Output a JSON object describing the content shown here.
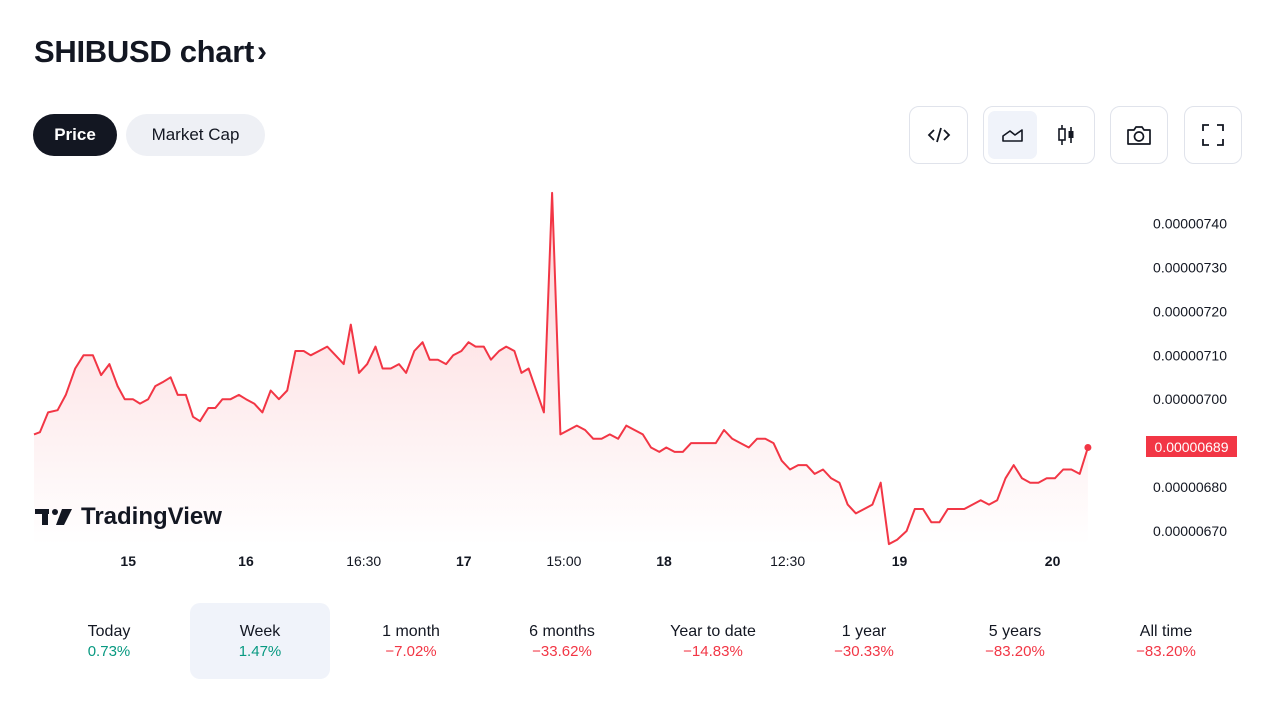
{
  "header": {
    "title": "SHIBUSD chart",
    "chevron": "›"
  },
  "tabs": [
    {
      "label": "Price",
      "active": true
    },
    {
      "label": "Market Cap",
      "active": false
    }
  ],
  "toolbar": {
    "embed_icon": "embed-code-icon",
    "area_icon": "area-chart-icon",
    "candle_icon": "candlestick-icon",
    "camera_icon": "camera-icon",
    "fullscreen_icon": "fullscreen-icon"
  },
  "colors": {
    "line": "#f23645",
    "positive": "#089981",
    "negative": "#f23645",
    "dark": "#131722"
  },
  "logo": {
    "text": "TradingView"
  },
  "chart_data": {
    "type": "area",
    "last_price_label": "0.00000689",
    "y_ticks": [
      "0.00000740",
      "0.00000730",
      "0.00000720",
      "0.00000710",
      "0.00000700",
      "0.00000680",
      "0.00000670"
    ],
    "y_tick_values": [
      7.4e-06,
      7.3e-06,
      7.2e-06,
      7.1e-06,
      7e-06,
      6.8e-06,
      6.7e-06
    ],
    "x_ticks": [
      {
        "label": "15",
        "t": 0.8,
        "bold": true
      },
      {
        "label": "16",
        "t": 1.8,
        "bold": true
      },
      {
        "label": "16:30",
        "t": 2.8,
        "bold": false
      },
      {
        "label": "17",
        "t": 3.65,
        "bold": true
      },
      {
        "label": "15:00",
        "t": 4.5,
        "bold": false
      },
      {
        "label": "18",
        "t": 5.35,
        "bold": true
      },
      {
        "label": "12:30",
        "t": 6.4,
        "bold": false
      },
      {
        "label": "19",
        "t": 7.35,
        "bold": true
      },
      {
        "label": "20",
        "t": 8.65,
        "bold": true
      }
    ],
    "ylim": [
      6.668e-06,
      7.488e-06
    ],
    "xlim": [
      0.0,
      9.35
    ],
    "series": [
      {
        "points": [
          [
            0.0,
            6.92e-06
          ],
          [
            0.05,
            6.925e-06
          ],
          [
            0.12,
            6.97e-06
          ],
          [
            0.2,
            6.975e-06
          ],
          [
            0.27,
            7.01e-06
          ],
          [
            0.35,
            7.07e-06
          ],
          [
            0.42,
            7.1e-06
          ],
          [
            0.5,
            7.1e-06
          ],
          [
            0.57,
            7.055e-06
          ],
          [
            0.64,
            7.08e-06
          ],
          [
            0.71,
            7.03e-06
          ],
          [
            0.77,
            7e-06
          ],
          [
            0.84,
            7e-06
          ],
          [
            0.9,
            6.99e-06
          ],
          [
            0.97,
            7e-06
          ],
          [
            1.03,
            7.03e-06
          ],
          [
            1.1,
            7.04e-06
          ],
          [
            1.16,
            7.05e-06
          ],
          [
            1.22,
            7.01e-06
          ],
          [
            1.29,
            7.01e-06
          ],
          [
            1.35,
            6.96e-06
          ],
          [
            1.41,
            6.95e-06
          ],
          [
            1.48,
            6.98e-06
          ],
          [
            1.54,
            6.98e-06
          ],
          [
            1.6,
            7e-06
          ],
          [
            1.67,
            7e-06
          ],
          [
            1.74,
            7.01e-06
          ],
          [
            1.8,
            7e-06
          ],
          [
            1.87,
            6.99e-06
          ],
          [
            1.94,
            6.97e-06
          ],
          [
            2.01,
            7.02e-06
          ],
          [
            2.08,
            7e-06
          ],
          [
            2.15,
            7.02e-06
          ],
          [
            2.22,
            7.11e-06
          ],
          [
            2.29,
            7.11e-06
          ],
          [
            2.35,
            7.1e-06
          ],
          [
            2.42,
            7.11e-06
          ],
          [
            2.49,
            7.12e-06
          ],
          [
            2.56,
            7.1e-06
          ],
          [
            2.63,
            7.08e-06
          ],
          [
            2.69,
            7.17e-06
          ],
          [
            2.76,
            7.06e-06
          ],
          [
            2.83,
            7.08e-06
          ],
          [
            2.9,
            7.12e-06
          ],
          [
            2.96,
            7.07e-06
          ],
          [
            3.03,
            7.07e-06
          ],
          [
            3.1,
            7.08e-06
          ],
          [
            3.16,
            7.06e-06
          ],
          [
            3.23,
            7.11e-06
          ],
          [
            3.3,
            7.13e-06
          ],
          [
            3.36,
            7.09e-06
          ],
          [
            3.43,
            7.09e-06
          ],
          [
            3.5,
            7.08e-06
          ],
          [
            3.56,
            7.1e-06
          ],
          [
            3.63,
            7.11e-06
          ],
          [
            3.69,
            7.13e-06
          ],
          [
            3.75,
            7.12e-06
          ],
          [
            3.82,
            7.12e-06
          ],
          [
            3.88,
            7.09e-06
          ],
          [
            3.95,
            7.11e-06
          ],
          [
            4.01,
            7.12e-06
          ],
          [
            4.08,
            7.11e-06
          ],
          [
            4.14,
            7.06e-06
          ],
          [
            4.2,
            7.07e-06
          ],
          [
            4.33,
            6.97e-06
          ],
          [
            4.4,
            7.47e-06
          ],
          [
            4.47,
            6.92e-06
          ],
          [
            4.54,
            6.93e-06
          ],
          [
            4.61,
            6.94e-06
          ],
          [
            4.68,
            6.93e-06
          ],
          [
            4.75,
            6.91e-06
          ],
          [
            4.82,
            6.91e-06
          ],
          [
            4.89,
            6.92e-06
          ],
          [
            4.96,
            6.91e-06
          ],
          [
            5.03,
            6.94e-06
          ],
          [
            5.1,
            6.93e-06
          ],
          [
            5.17,
            6.92e-06
          ],
          [
            5.24,
            6.89e-06
          ],
          [
            5.31,
            6.88e-06
          ],
          [
            5.37,
            6.89e-06
          ],
          [
            5.44,
            6.88e-06
          ],
          [
            5.51,
            6.88e-06
          ],
          [
            5.58,
            6.9e-06
          ],
          [
            5.65,
            6.9e-06
          ],
          [
            5.72,
            6.9e-06
          ],
          [
            5.79,
            6.9e-06
          ],
          [
            5.86,
            6.93e-06
          ],
          [
            5.93,
            6.91e-06
          ],
          [
            6.0,
            6.9e-06
          ],
          [
            6.07,
            6.89e-06
          ],
          [
            6.14,
            6.91e-06
          ],
          [
            6.21,
            6.91e-06
          ],
          [
            6.28,
            6.9e-06
          ],
          [
            6.35,
            6.86e-06
          ],
          [
            6.42,
            6.84e-06
          ],
          [
            6.49,
            6.85e-06
          ],
          [
            6.56,
            6.85e-06
          ],
          [
            6.63,
            6.83e-06
          ],
          [
            6.7,
            6.84e-06
          ],
          [
            6.77,
            6.82e-06
          ],
          [
            6.84,
            6.81e-06
          ],
          [
            6.91,
            6.76e-06
          ],
          [
            6.98,
            6.74e-06
          ],
          [
            7.05,
            6.75e-06
          ],
          [
            7.12,
            6.76e-06
          ],
          [
            7.19,
            6.81e-06
          ],
          [
            7.26,
            6.67e-06
          ],
          [
            7.33,
            6.68e-06
          ],
          [
            7.41,
            6.7e-06
          ],
          [
            7.48,
            6.75e-06
          ],
          [
            7.55,
            6.75e-06
          ],
          [
            7.62,
            6.72e-06
          ],
          [
            7.69,
            6.72e-06
          ],
          [
            7.76,
            6.75e-06
          ],
          [
            7.83,
            6.75e-06
          ],
          [
            7.9,
            6.75e-06
          ],
          [
            7.97,
            6.76e-06
          ],
          [
            8.04,
            6.77e-06
          ],
          [
            8.11,
            6.76e-06
          ],
          [
            8.18,
            6.77e-06
          ],
          [
            8.25,
            6.82e-06
          ],
          [
            8.32,
            6.85e-06
          ],
          [
            8.39,
            6.82e-06
          ],
          [
            8.46,
            6.81e-06
          ],
          [
            8.53,
            6.81e-06
          ],
          [
            8.6,
            6.82e-06
          ],
          [
            8.67,
            6.82e-06
          ],
          [
            8.74,
            6.84e-06
          ],
          [
            8.81,
            6.84e-06
          ],
          [
            8.88,
            6.83e-06
          ],
          [
            8.95,
            6.89e-06
          ]
        ]
      }
    ]
  },
  "periods": [
    {
      "label": "Today",
      "value": "0.73%",
      "dir": "pos",
      "active": false
    },
    {
      "label": "Week",
      "value": "1.47%",
      "dir": "pos",
      "active": true
    },
    {
      "label": "1 month",
      "value": "−7.02%",
      "dir": "neg",
      "active": false
    },
    {
      "label": "6 months",
      "value": "−33.62%",
      "dir": "neg",
      "active": false
    },
    {
      "label": "Year to date",
      "value": "−14.83%",
      "dir": "neg",
      "active": false
    },
    {
      "label": "1 year",
      "value": "−30.33%",
      "dir": "neg",
      "active": false
    },
    {
      "label": "5 years",
      "value": "−83.20%",
      "dir": "neg",
      "active": false
    },
    {
      "label": "All time",
      "value": "−83.20%",
      "dir": "neg",
      "active": false
    }
  ]
}
